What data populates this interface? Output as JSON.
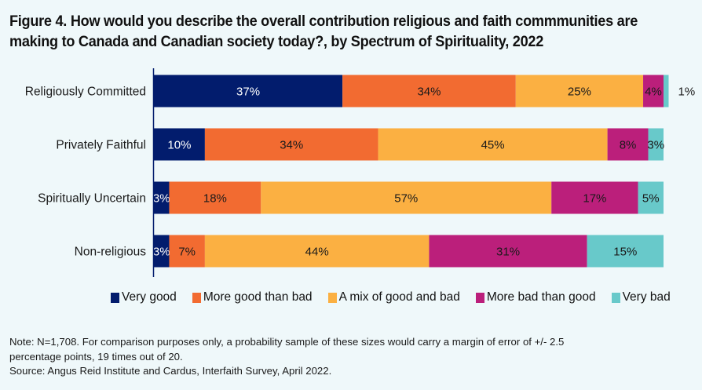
{
  "chart_data": {
    "type": "bar",
    "orientation": "horizontal",
    "stacked": true,
    "title": "Figure 4. How would you describe the overall contribution religious and faith commmunities are making to Canada and Canadian society today?, by Spectrum of Spirituality, 2022",
    "xlabel": "",
    "ylabel": "",
    "xlim": [
      0,
      100
    ],
    "grid": false,
    "legend_position": "bottom",
    "categories": [
      "Religiously Committed",
      "Privately Faithful",
      "Spiritually Uncertain",
      "Non-religious"
    ],
    "series": [
      {
        "name": "Very good",
        "color": "#021c6d",
        "label_color": "#ffffff",
        "values": [
          37,
          10,
          3,
          3
        ],
        "labels": [
          "37%",
          "10%",
          "3%",
          "3%"
        ]
      },
      {
        "name": "More good than bad",
        "color": "#f26b31",
        "label_color": "#1a1a1a",
        "values": [
          34,
          34,
          18,
          7
        ],
        "labels": [
          "34%",
          "34%",
          "18%",
          "7%"
        ]
      },
      {
        "name": "A mix of good and bad",
        "color": "#fbb042",
        "label_color": "#1a1a1a",
        "values": [
          25,
          45,
          57,
          44
        ],
        "labels": [
          "25%",
          "45%",
          "57%",
          "44%"
        ]
      },
      {
        "name": "More bad than good",
        "color": "#bb1f7b",
        "label_color": "#1a1a1a",
        "values": [
          4,
          8,
          17,
          31
        ],
        "labels": [
          "4%",
          "8%",
          "17%",
          "31%"
        ]
      },
      {
        "name": "Very bad",
        "color": "#68c9ca",
        "label_color": "#1a1a1a",
        "values": [
          1,
          3,
          5,
          15
        ],
        "labels": [
          "1%",
          "3%",
          "5%",
          "15%"
        ],
        "outside_label_for_categories": [
          "Religiously Committed"
        ]
      }
    ]
  },
  "legend": [
    {
      "label": "Very good",
      "color": "#021c6d"
    },
    {
      "label": "More good than bad",
      "color": "#f26b31"
    },
    {
      "label": "A mix of good and bad",
      "color": "#fbb042"
    },
    {
      "label": "More bad than good",
      "color": "#bb1f7b"
    },
    {
      "label": "Very bad",
      "color": "#68c9ca"
    }
  ],
  "notes": {
    "line1": "Note: N=1,708. For comparison purposes only, a probability sample of these sizes would carry a margin of error of +/- 2.5",
    "line2": "percentage points, 19 times out of 20.",
    "source": "Source: Angus Reid Institute and Cardus, Interfaith Survey, April 2022."
  },
  "colors": {
    "background": "#eff8fa",
    "axis": "#021c6d"
  }
}
